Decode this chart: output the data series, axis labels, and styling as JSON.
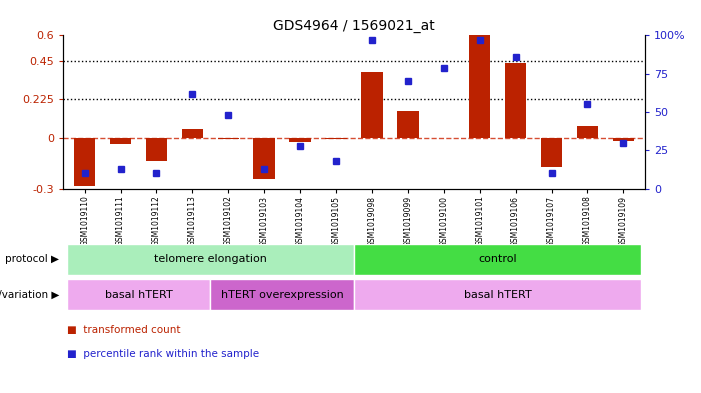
{
  "title": "GDS4964 / 1569021_at",
  "samples": [
    "GSM1019110",
    "GSM1019111",
    "GSM1019112",
    "GSM1019113",
    "GSM1019102",
    "GSM1019103",
    "GSM1019104",
    "GSM1019105",
    "GSM1019098",
    "GSM1019099",
    "GSM1019100",
    "GSM1019101",
    "GSM1019106",
    "GSM1019107",
    "GSM1019108",
    "GSM1019109"
  ],
  "bar_values": [
    -0.285,
    -0.04,
    -0.14,
    0.05,
    -0.01,
    -0.245,
    -0.025,
    -0.01,
    0.385,
    0.155,
    0.0,
    0.6,
    0.44,
    -0.175,
    0.065,
    -0.02
  ],
  "dot_values_pct": [
    10,
    13,
    10,
    62,
    48,
    13,
    28,
    18,
    97,
    70,
    79,
    97,
    86,
    10,
    55,
    30
  ],
  "ylim_left": [
    -0.3,
    0.6
  ],
  "ylim_right": [
    0,
    100
  ],
  "yticks_left": [
    -0.3,
    0.0,
    0.225,
    0.45,
    0.6
  ],
  "yticks_right": [
    0,
    25,
    50,
    75,
    100
  ],
  "ytick_labels_left": [
    "-0.3",
    "0",
    "0.225",
    "0.45",
    "0.6"
  ],
  "ytick_labels_right": [
    "0",
    "25",
    "50",
    "75",
    "100%"
  ],
  "hline_dotted": [
    0.225,
    0.45
  ],
  "bar_color": "#bb2200",
  "dot_color": "#2222cc",
  "hline_color": "#cc2200",
  "protocol_groups": [
    {
      "label": "telomere elongation",
      "start": 0,
      "end": 7,
      "color": "#aaeebb"
    },
    {
      "label": "control",
      "start": 8,
      "end": 15,
      "color": "#44dd44"
    }
  ],
  "genotype_groups": [
    {
      "label": "basal hTERT",
      "start": 0,
      "end": 3,
      "color": "#eeaaee"
    },
    {
      "label": "hTERT overexpression",
      "start": 4,
      "end": 7,
      "color": "#cc66cc"
    },
    {
      "label": "basal hTERT",
      "start": 8,
      "end": 15,
      "color": "#eeaaee"
    }
  ],
  "legend_items": [
    {
      "label": "transformed count",
      "color": "#bb2200"
    },
    {
      "label": "percentile rank within the sample",
      "color": "#2222cc"
    }
  ],
  "protocol_label": "protocol",
  "genotype_label": "genotype/variation",
  "background_color": "#ffffff",
  "plot_bg_color": "#ffffff"
}
